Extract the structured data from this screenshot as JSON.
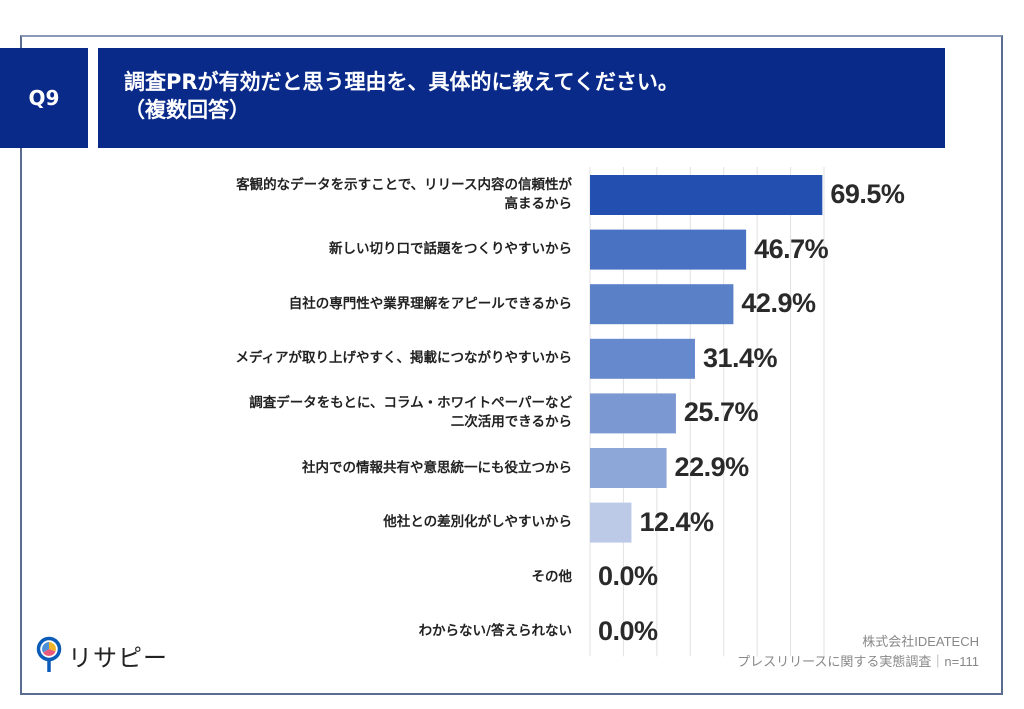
{
  "header": {
    "question_number": "Q9",
    "title_line1": "調査PRが有効だと思う理由を、具体的に教えてください。",
    "title_line2": "（複数回答）"
  },
  "chart_data": {
    "type": "bar",
    "orientation": "horizontal",
    "categories": [
      "客観的なデータを示すことで、リリース内容の信頼性が\n高まるから",
      "新しい切り口で話題をつくりやすいから",
      "自社の専門性や業界理解をアピールできるから",
      "メディアが取り上げやすく、掲載につながりやすいから",
      "調査データをもとに、コラム・ホワイトペーパーなど\n二次活用できるから",
      "社内での情報共有や意思統一にも役立つから",
      "他社との差別化がしやすいから",
      "その他",
      "わからない/答えられない"
    ],
    "values": [
      69.5,
      46.7,
      42.9,
      31.4,
      25.7,
      22.9,
      12.4,
      0.0,
      0.0
    ],
    "value_labels": [
      "69.5%",
      "46.7%",
      "42.9%",
      "31.4%",
      "25.7%",
      "22.9%",
      "12.4%",
      "0.0%",
      "0.0%"
    ],
    "xlim": [
      0,
      70
    ],
    "grid": true,
    "bar_colors": [
      "#2350b0",
      "#4a72c2",
      "#5a80c8",
      "#6688cc",
      "#7b98d2",
      "#8ea7d9",
      "#bccae8",
      "#d0daf0",
      "#d0daf0"
    ]
  },
  "footer": {
    "company": "株式会社IDEATECH",
    "survey": "プレスリリースに関する実態調査｜n=111"
  },
  "logo": {
    "text": "リサピー",
    "colors": [
      "#0a5cb8",
      "#f0b429",
      "#e85a7a",
      "#4a8fd8"
    ]
  }
}
